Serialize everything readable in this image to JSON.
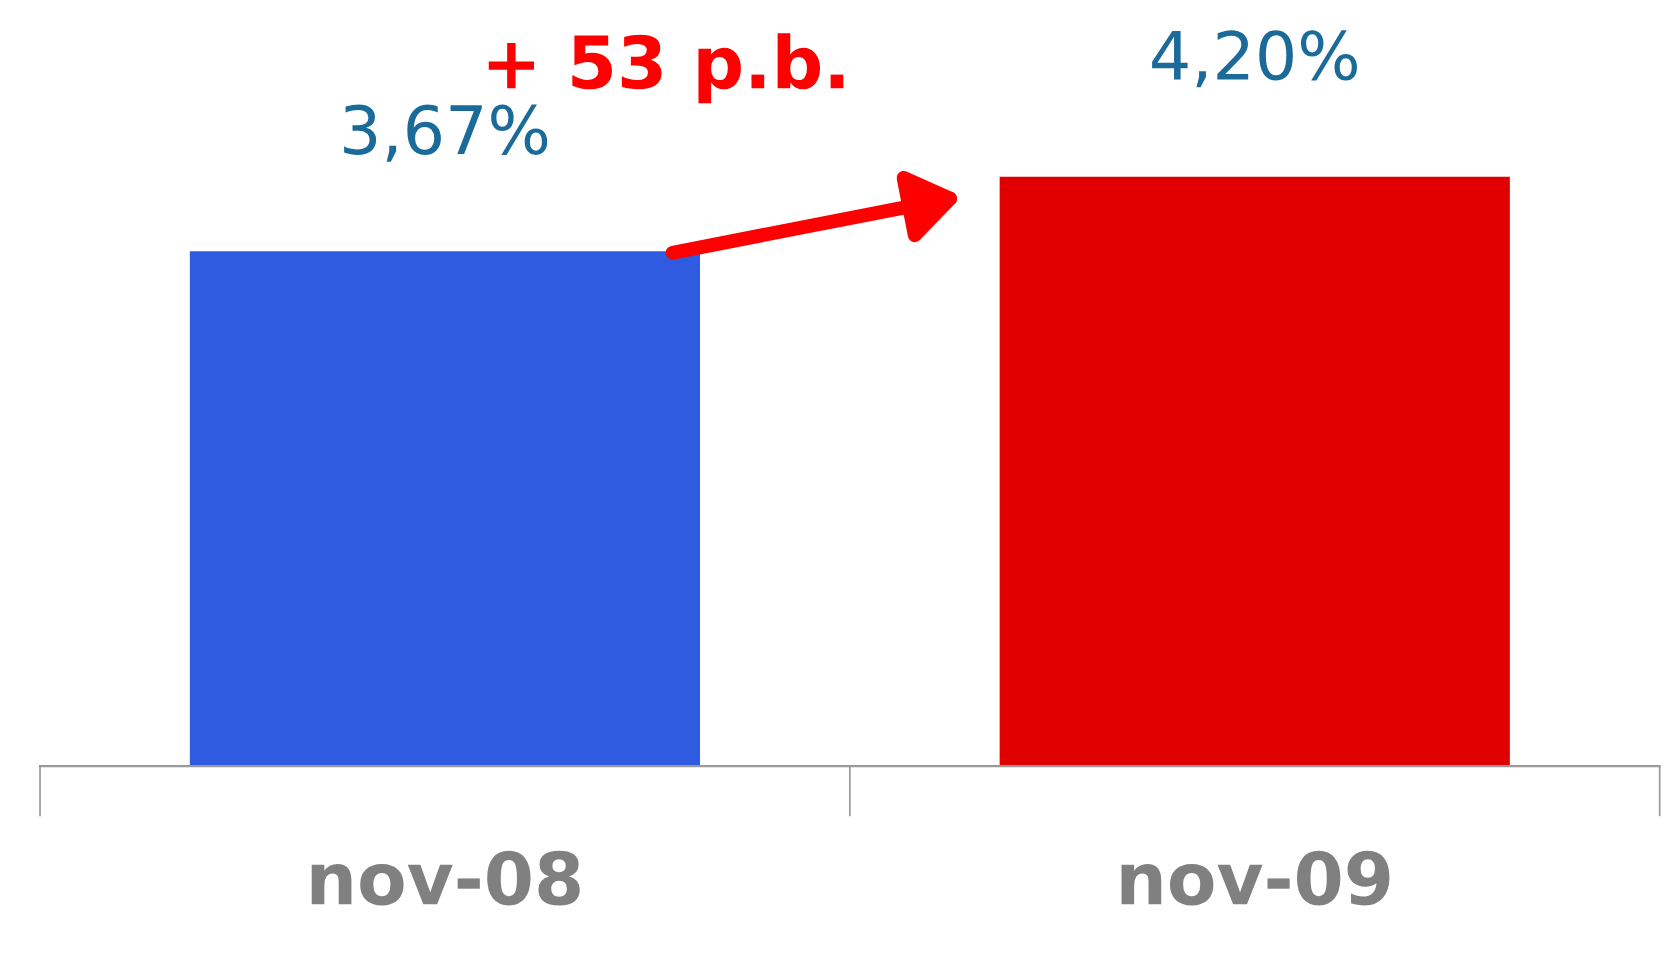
{
  "chart_data": {
    "type": "bar",
    "categories": [
      "nov-08",
      "nov-09"
    ],
    "values": [
      3.67,
      4.2
    ],
    "value_labels": [
      "3,67%",
      "4,20%"
    ],
    "colors": [
      "#2f5be0",
      "#e00000"
    ],
    "annotations": [
      "+ 53 p.b."
    ],
    "grid": false,
    "legend": false
  }
}
